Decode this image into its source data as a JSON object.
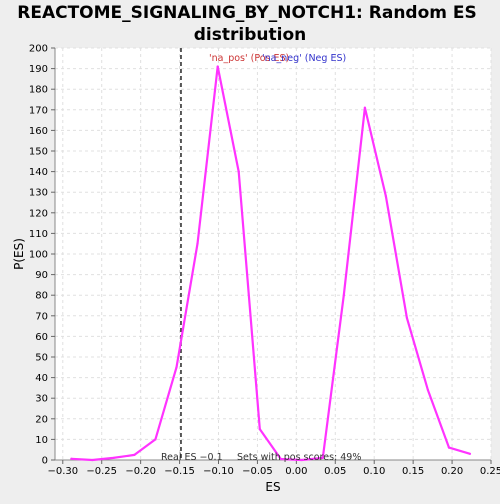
{
  "chart_data": {
    "type": "line",
    "title_lines": [
      "REACTOME_SIGNALING_BY_NOTCH1: Random ES",
      "distribution"
    ],
    "xlabel": "ES",
    "ylabel": "P(ES)",
    "xlim": [
      -0.31,
      0.25
    ],
    "ylim": [
      0,
      200
    ],
    "xticks": [
      -0.3,
      -0.25,
      -0.2,
      -0.15,
      -0.1,
      -0.05,
      0.0,
      0.05,
      0.1,
      0.15,
      0.2,
      0.25
    ],
    "xtick_labels": [
      "−0.30",
      "−0.25",
      "−0.20",
      "−0.15",
      "−0.10",
      "−0.05",
      "0.00",
      "0.05",
      "0.10",
      "0.15",
      "0.20",
      "0.25"
    ],
    "yticks": [
      0,
      10,
      20,
      30,
      40,
      50,
      60,
      70,
      80,
      90,
      100,
      110,
      120,
      130,
      140,
      150,
      160,
      170,
      180,
      190,
      200
    ],
    "grid": true,
    "series": [
      {
        "color": "#ff33ff",
        "points": [
          [
            -0.289,
            0.6
          ],
          [
            -0.262,
            0
          ],
          [
            -0.235,
            1
          ],
          [
            -0.208,
            2.5
          ],
          [
            -0.181,
            10
          ],
          [
            -0.154,
            45
          ],
          [
            -0.127,
            105
          ],
          [
            -0.101,
            191
          ],
          [
            -0.074,
            140
          ],
          [
            -0.047,
            15
          ],
          [
            -0.02,
            0.5
          ],
          [
            0.007,
            0
          ],
          [
            0.034,
            1
          ],
          [
            0.061,
            80
          ],
          [
            0.088,
            171
          ],
          [
            0.115,
            128
          ],
          [
            0.142,
            69
          ],
          [
            0.169,
            34
          ],
          [
            0.196,
            6
          ],
          [
            0.223,
            3
          ]
        ]
      }
    ],
    "real_es": -0.1482,
    "annotations": {
      "legend_pos": "'na_pos' (Pos ES)",
      "legend_neg": "'na_neg' (Neg ES)",
      "real_es_label": "Real ES −0.1",
      "pos_scores_label": "Sets with pos scores: 49%"
    },
    "colors": {
      "curve": "#ff33ff",
      "pos_legend": "#cc3333",
      "neg_legend": "#3333cc",
      "real_es_line": "#333333",
      "background": "#eeeeee",
      "plot_background": "#ffffff",
      "grid": "#e0e0e0"
    }
  }
}
